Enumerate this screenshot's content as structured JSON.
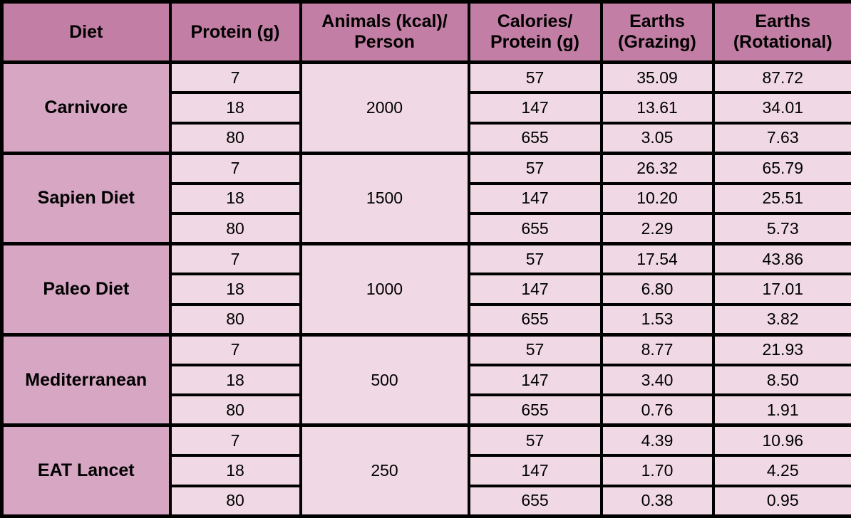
{
  "colors": {
    "header_bg": "#c27ea4",
    "diet_column_bg": "#d6a6c3",
    "data_cell_bg": "#f0d9e5",
    "border": "#000000",
    "text": "#000000"
  },
  "header": {
    "diet": "Diet",
    "protein": "Protein (g)",
    "animals": "Animals (kcal)/\nPerson",
    "calories": "Calories/\nProtein (g)",
    "earths_grazing": "Earths\n(Grazing)",
    "earths_rotational": "Earths\n(Rotational)"
  },
  "groups": [
    {
      "diet": "Carnivore",
      "animals_kcal": "2000",
      "rows": [
        {
          "protein": "7",
          "calories": "57",
          "grazing": "35.09",
          "rotational": "87.72"
        },
        {
          "protein": "18",
          "calories": "147",
          "grazing": "13.61",
          "rotational": "34.01"
        },
        {
          "protein": "80",
          "calories": "655",
          "grazing": "3.05",
          "rotational": "7.63"
        }
      ]
    },
    {
      "diet": "Sapien Diet",
      "animals_kcal": "1500",
      "rows": [
        {
          "protein": "7",
          "calories": "57",
          "grazing": "26.32",
          "rotational": "65.79"
        },
        {
          "protein": "18",
          "calories": "147",
          "grazing": "10.20",
          "rotational": "25.51"
        },
        {
          "protein": "80",
          "calories": "655",
          "grazing": "2.29",
          "rotational": "5.73"
        }
      ]
    },
    {
      "diet": "Paleo Diet",
      "animals_kcal": "1000",
      "rows": [
        {
          "protein": "7",
          "calories": "57",
          "grazing": "17.54",
          "rotational": "43.86"
        },
        {
          "protein": "18",
          "calories": "147",
          "grazing": "6.80",
          "rotational": "17.01"
        },
        {
          "protein": "80",
          "calories": "655",
          "grazing": "1.53",
          "rotational": "3.82"
        }
      ]
    },
    {
      "diet": "Mediterranean",
      "animals_kcal": "500",
      "rows": [
        {
          "protein": "7",
          "calories": "57",
          "grazing": "8.77",
          "rotational": "21.93"
        },
        {
          "protein": "18",
          "calories": "147",
          "grazing": "3.40",
          "rotational": "8.50"
        },
        {
          "protein": "80",
          "calories": "655",
          "grazing": "0.76",
          "rotational": "1.91"
        }
      ]
    },
    {
      "diet": "EAT Lancet",
      "animals_kcal": "250",
      "rows": [
        {
          "protein": "7",
          "calories": "57",
          "grazing": "4.39",
          "rotational": "10.96"
        },
        {
          "protein": "18",
          "calories": "147",
          "grazing": "1.70",
          "rotational": "4.25"
        },
        {
          "protein": "80",
          "calories": "655",
          "grazing": "0.38",
          "rotational": "0.95"
        }
      ]
    }
  ],
  "chart_data": {
    "type": "table",
    "columns": [
      "Diet",
      "Protein (g)",
      "Animals (kcal)/Person",
      "Calories/Protein (g)",
      "Earths (Grazing)",
      "Earths (Rotational)"
    ],
    "rows": [
      [
        "Carnivore",
        7,
        2000,
        57,
        35.09,
        87.72
      ],
      [
        "Carnivore",
        18,
        2000,
        147,
        13.61,
        34.01
      ],
      [
        "Carnivore",
        80,
        2000,
        655,
        3.05,
        7.63
      ],
      [
        "Sapien Diet",
        7,
        1500,
        57,
        26.32,
        65.79
      ],
      [
        "Sapien Diet",
        18,
        1500,
        147,
        10.2,
        25.51
      ],
      [
        "Sapien Diet",
        80,
        1500,
        655,
        2.29,
        5.73
      ],
      [
        "Paleo Diet",
        7,
        1000,
        57,
        17.54,
        43.86
      ],
      [
        "Paleo Diet",
        18,
        1000,
        147,
        6.8,
        17.01
      ],
      [
        "Paleo Diet",
        80,
        1000,
        655,
        1.53,
        3.82
      ],
      [
        "Mediterranean",
        7,
        500,
        57,
        8.77,
        21.93
      ],
      [
        "Mediterranean",
        18,
        500,
        147,
        3.4,
        8.5
      ],
      [
        "Mediterranean",
        80,
        500,
        655,
        0.76,
        1.91
      ],
      [
        "EAT Lancet",
        7,
        250,
        57,
        4.39,
        10.96
      ],
      [
        "EAT Lancet",
        18,
        250,
        147,
        1.7,
        4.25
      ],
      [
        "EAT Lancet",
        80,
        250,
        655,
        0.38,
        0.95
      ]
    ]
  }
}
